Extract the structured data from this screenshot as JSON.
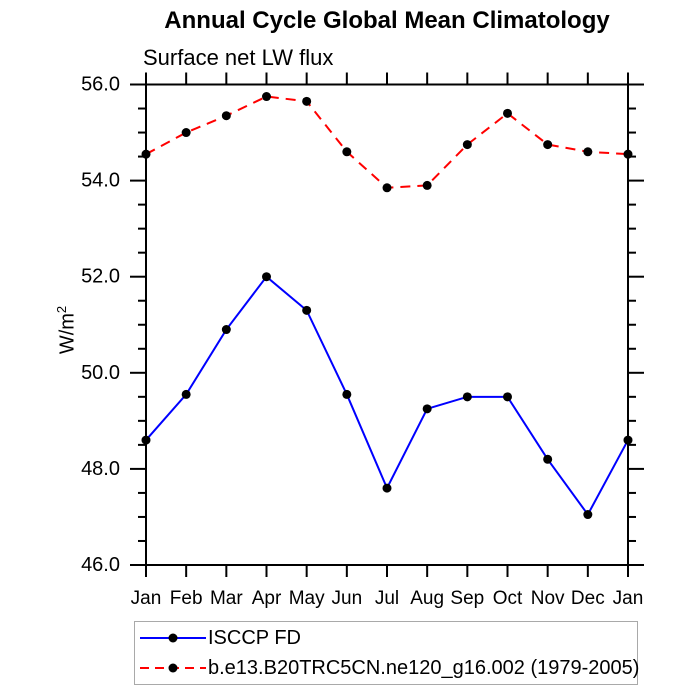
{
  "chart_data": {
    "type": "line",
    "title": "Annual Cycle Global Mean Climatology",
    "subtitle": "Surface net LW flux",
    "ylabel": "W/m^2",
    "ylabel_base": "W/m",
    "ylabel_exponent": "2",
    "categories": [
      "Jan",
      "Feb",
      "Mar",
      "Apr",
      "May",
      "Jun",
      "Jul",
      "Aug",
      "Sep",
      "Oct",
      "Nov",
      "Dec",
      "Jan"
    ],
    "ylim": [
      46.0,
      56.0
    ],
    "ytick_major": 2.0,
    "ytick_minor": 0.5,
    "ytick_labels": [
      "46.0",
      "48.0",
      "50.0",
      "52.0",
      "54.0",
      "56.0"
    ],
    "grid": false,
    "legend_position": "bottom",
    "frame_color": "#000000",
    "marker_color": "#000000",
    "legend_border_color": "#a9a9a9",
    "series": [
      {
        "name": "ISCCP FD",
        "color": "#0000ff",
        "line_style": "solid",
        "marker": "filled-circle",
        "values": [
          48.6,
          49.55,
          50.9,
          52.0,
          51.3,
          49.55,
          47.6,
          49.25,
          49.5,
          49.5,
          48.2,
          47.05,
          48.6
        ]
      },
      {
        "name": "b.e13.B20TRC5CN.ne120_g16.002 (1979-2005)",
        "color": "#ff0000",
        "line_style": "dashed",
        "marker": "filled-circle",
        "values": [
          54.55,
          55.0,
          55.35,
          55.75,
          55.65,
          54.6,
          53.85,
          53.9,
          54.75,
          55.4,
          54.75,
          54.6,
          54.55
        ]
      }
    ]
  }
}
